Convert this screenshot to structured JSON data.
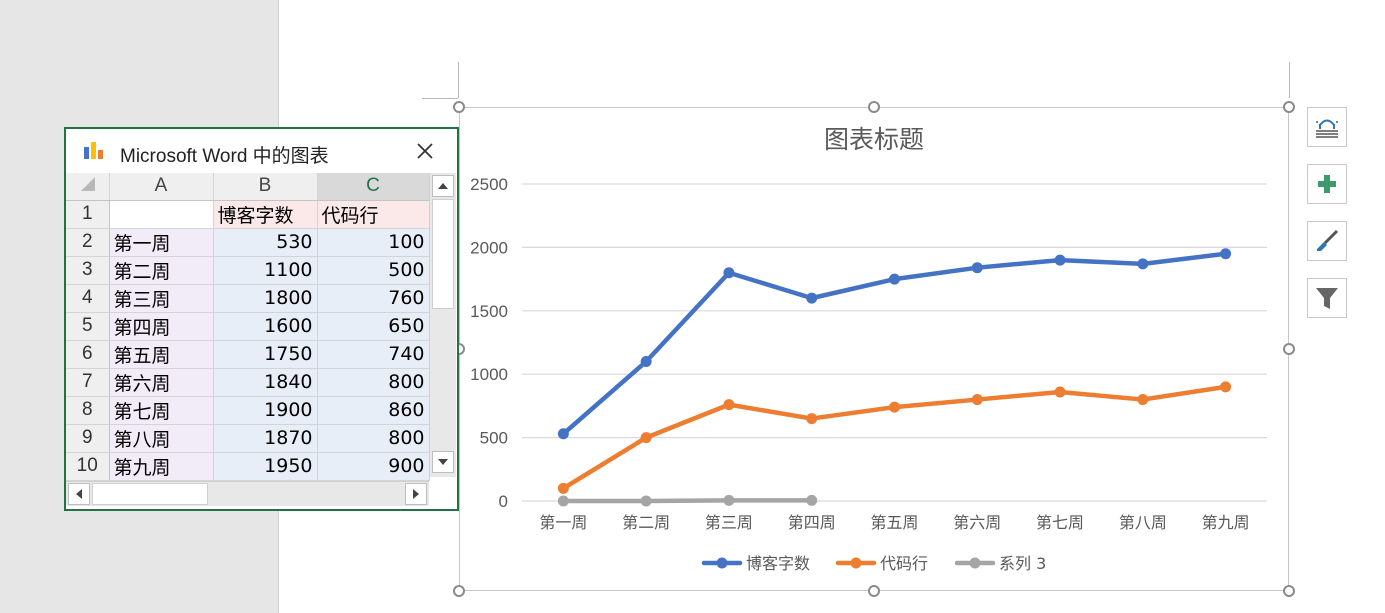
{
  "window": {
    "title": "Microsoft Word 中的图表"
  },
  "sheet": {
    "col_headers": [
      "A",
      "B",
      "C"
    ],
    "rows": [
      {
        "num": "1",
        "a": "",
        "b": "博客字数",
        "c": "代码行"
      },
      {
        "num": "2",
        "a": "第一周",
        "b": "530",
        "c": "100"
      },
      {
        "num": "3",
        "a": "第二周",
        "b": "1100",
        "c": "500"
      },
      {
        "num": "4",
        "a": "第三周",
        "b": "1800",
        "c": "760"
      },
      {
        "num": "5",
        "a": "第四周",
        "b": "1600",
        "c": "650"
      },
      {
        "num": "6",
        "a": "第五周",
        "b": "1750",
        "c": "740"
      },
      {
        "num": "7",
        "a": "第六周",
        "b": "1840",
        "c": "800"
      },
      {
        "num": "8",
        "a": "第七周",
        "b": "1900",
        "c": "860"
      },
      {
        "num": "9",
        "a": "第八周",
        "b": "1870",
        "c": "800"
      },
      {
        "num": "10",
        "a": "第九周",
        "b": "1950",
        "c": "900"
      }
    ]
  },
  "icons": {
    "app": "bar-chart-icon",
    "close": "close-icon",
    "layout": "chart-layout-icon",
    "elements": "plus-icon",
    "styles": "brush-icon",
    "filter": "filter-icon"
  },
  "chart_data": {
    "type": "line",
    "title": "图表标题",
    "categories": [
      "第一周",
      "第二周",
      "第三周",
      "第四周",
      "第五周",
      "第六周",
      "第七周",
      "第八周",
      "第九周"
    ],
    "ylim": [
      0,
      2500
    ],
    "yticks": [
      "0",
      "500",
      "1000",
      "1500",
      "2000",
      "2500"
    ],
    "grid": true,
    "legend_position": "bottom",
    "series": [
      {
        "name": "博客字数",
        "color": "#4472c4",
        "values": [
          530,
          1100,
          1800,
          1600,
          1750,
          1840,
          1900,
          1870,
          1950
        ]
      },
      {
        "name": "代码行",
        "color": "#ed7d31",
        "values": [
          100,
          500,
          760,
          650,
          740,
          800,
          860,
          800,
          900
        ]
      },
      {
        "name": "系列 3",
        "color": "#a5a5a5",
        "values": [
          0,
          0,
          5,
          5,
          null,
          null,
          null,
          null,
          null
        ]
      }
    ]
  }
}
